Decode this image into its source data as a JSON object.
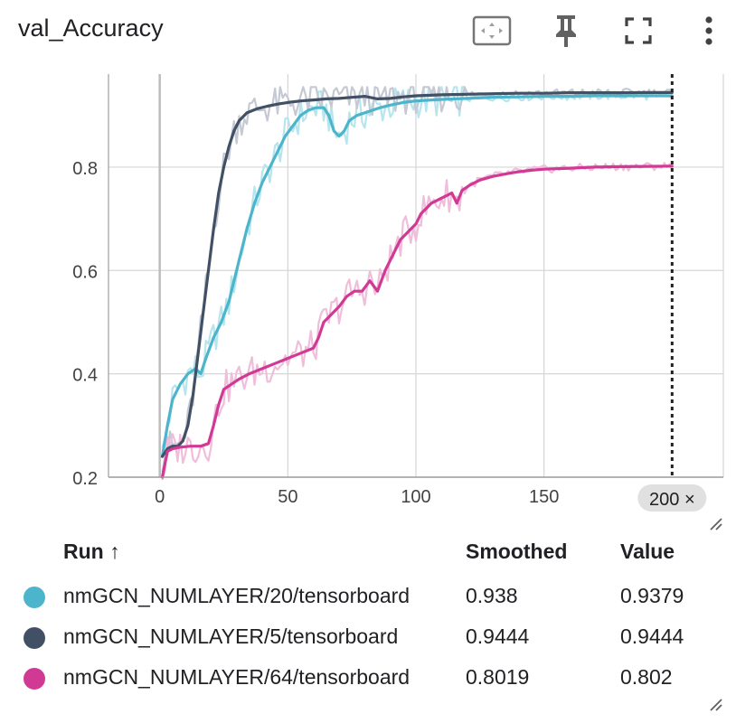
{
  "card": {
    "title": "val_Accuracy",
    "tools": {
      "fit_icon": "fit-to-domain-icon",
      "pin_icon": "pin-icon",
      "fullscreen_icon": "fullscreen-icon",
      "more_icon": "more-vert-icon"
    }
  },
  "chart_data": {
    "type": "line",
    "title": "val_Accuracy",
    "xlabel": "",
    "ylabel": "",
    "xlim": [
      -20,
      220
    ],
    "ylim": [
      0.2,
      0.98
    ],
    "x_ticks": [
      0,
      50,
      100,
      150
    ],
    "y_ticks": [
      0.2,
      0.4,
      0.6,
      0.8
    ],
    "grid": true,
    "hover_step": 200,
    "hover_label": "200 ×",
    "series": [
      {
        "name": "nmGCN_NUMLAYER/20/tensorboard",
        "color": "#4db5cb",
        "raw_color": "#b7e5ee",
        "points": [
          [
            1,
            0.24
          ],
          [
            3,
            0.3
          ],
          [
            5,
            0.35
          ],
          [
            8,
            0.38
          ],
          [
            11,
            0.4
          ],
          [
            14,
            0.41
          ],
          [
            16,
            0.4
          ],
          [
            18,
            0.43
          ],
          [
            21,
            0.47
          ],
          [
            24,
            0.5
          ],
          [
            27,
            0.54
          ],
          [
            29,
            0.58
          ],
          [
            31,
            0.62
          ],
          [
            34,
            0.68
          ],
          [
            37,
            0.73
          ],
          [
            40,
            0.77
          ],
          [
            43,
            0.8
          ],
          [
            46,
            0.83
          ],
          [
            49,
            0.86
          ],
          [
            52,
            0.88
          ],
          [
            55,
            0.9
          ],
          [
            58,
            0.91
          ],
          [
            61,
            0.915
          ],
          [
            64,
            0.915
          ],
          [
            66,
            0.9
          ],
          [
            68,
            0.87
          ],
          [
            70,
            0.86
          ],
          [
            72,
            0.87
          ],
          [
            74,
            0.89
          ],
          [
            77,
            0.9
          ],
          [
            80,
            0.905
          ],
          [
            83,
            0.91
          ],
          [
            86,
            0.915
          ],
          [
            90,
            0.92
          ],
          [
            95,
            0.925
          ],
          [
            100,
            0.928
          ],
          [
            110,
            0.931
          ],
          [
            120,
            0.933
          ],
          [
            130,
            0.935
          ],
          [
            140,
            0.936
          ],
          [
            150,
            0.937
          ],
          [
            160,
            0.937
          ],
          [
            170,
            0.938
          ],
          [
            180,
            0.938
          ],
          [
            190,
            0.938
          ],
          [
            200,
            0.938
          ]
        ]
      },
      {
        "name": "nmGCN_NUMLAYER/5/tensorboard",
        "color": "#425066",
        "raw_color": "#c4c9d3",
        "points": [
          [
            1,
            0.24
          ],
          [
            3,
            0.255
          ],
          [
            5,
            0.26
          ],
          [
            7,
            0.26
          ],
          [
            9,
            0.27
          ],
          [
            11,
            0.3
          ],
          [
            13,
            0.36
          ],
          [
            15,
            0.44
          ],
          [
            17,
            0.52
          ],
          [
            19,
            0.6
          ],
          [
            21,
            0.68
          ],
          [
            23,
            0.75
          ],
          [
            25,
            0.8
          ],
          [
            27,
            0.84
          ],
          [
            29,
            0.87
          ],
          [
            31,
            0.89
          ],
          [
            34,
            0.905
          ],
          [
            38,
            0.913
          ],
          [
            42,
            0.918
          ],
          [
            46,
            0.922
          ],
          [
            50,
            0.925
          ],
          [
            55,
            0.928
          ],
          [
            60,
            0.93
          ],
          [
            65,
            0.932
          ],
          [
            70,
            0.933
          ],
          [
            75,
            0.935
          ],
          [
            80,
            0.937
          ],
          [
            85,
            0.932
          ],
          [
            90,
            0.933
          ],
          [
            95,
            0.936
          ],
          [
            100,
            0.938
          ],
          [
            110,
            0.94
          ],
          [
            120,
            0.941
          ],
          [
            130,
            0.942
          ],
          [
            140,
            0.943
          ],
          [
            150,
            0.943
          ],
          [
            160,
            0.944
          ],
          [
            170,
            0.944
          ],
          [
            180,
            0.944
          ],
          [
            190,
            0.9444
          ],
          [
            200,
            0.9444
          ]
        ]
      },
      {
        "name": "nmGCN_NUMLAYER/64/tensorboard",
        "color": "#d13a94",
        "raw_color": "#f0bedb",
        "points": [
          [
            1,
            0.2
          ],
          [
            3,
            0.25
          ],
          [
            5,
            0.255
          ],
          [
            8,
            0.258
          ],
          [
            12,
            0.26
          ],
          [
            16,
            0.26
          ],
          [
            19,
            0.265
          ],
          [
            21,
            0.3
          ],
          [
            23,
            0.34
          ],
          [
            25,
            0.37
          ],
          [
            28,
            0.38
          ],
          [
            31,
            0.39
          ],
          [
            35,
            0.4
          ],
          [
            40,
            0.41
          ],
          [
            45,
            0.42
          ],
          [
            50,
            0.43
          ],
          [
            55,
            0.44
          ],
          [
            60,
            0.45
          ],
          [
            62,
            0.47
          ],
          [
            64,
            0.5
          ],
          [
            66,
            0.51
          ],
          [
            68,
            0.52
          ],
          [
            70,
            0.53
          ],
          [
            73,
            0.55
          ],
          [
            76,
            0.56
          ],
          [
            79,
            0.56
          ],
          [
            82,
            0.58
          ],
          [
            85,
            0.56
          ],
          [
            88,
            0.6
          ],
          [
            90,
            0.62
          ],
          [
            92,
            0.64
          ],
          [
            94,
            0.66
          ],
          [
            96,
            0.67
          ],
          [
            98,
            0.68
          ],
          [
            100,
            0.69
          ],
          [
            102,
            0.71
          ],
          [
            104,
            0.72
          ],
          [
            106,
            0.73
          ],
          [
            108,
            0.735
          ],
          [
            110,
            0.74
          ],
          [
            112,
            0.745
          ],
          [
            114,
            0.75
          ],
          [
            116,
            0.73
          ],
          [
            118,
            0.755
          ],
          [
            121,
            0.765
          ],
          [
            125,
            0.775
          ],
          [
            130,
            0.782
          ],
          [
            135,
            0.787
          ],
          [
            140,
            0.791
          ],
          [
            145,
            0.794
          ],
          [
            150,
            0.796
          ],
          [
            160,
            0.798
          ],
          [
            170,
            0.8
          ],
          [
            180,
            0.801
          ],
          [
            190,
            0.8015
          ],
          [
            200,
            0.8019
          ]
        ]
      }
    ]
  },
  "table": {
    "columns": {
      "run": "Run ↑",
      "smoothed": "Smoothed",
      "value": "Value"
    },
    "rows": [
      {
        "run": "nmGCN_NUMLAYER/20/tensorboard",
        "color": "#4db5cb",
        "smoothed": "0.938",
        "value": "0.9379"
      },
      {
        "run": "nmGCN_NUMLAYER/5/tensorboard",
        "color": "#425066",
        "smoothed": "0.9444",
        "value": "0.9444"
      },
      {
        "run": "nmGCN_NUMLAYER/64/tensorboard",
        "color": "#d13a94",
        "smoothed": "0.8019",
        "value": "0.802"
      }
    ]
  }
}
